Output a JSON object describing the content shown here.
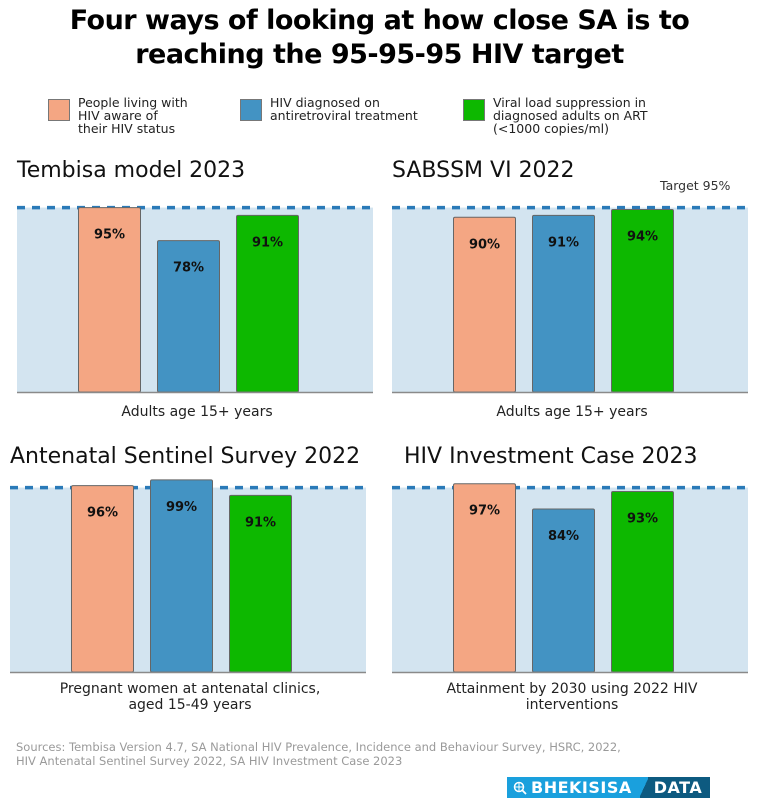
{
  "title_line1": "Four ways of looking at how close SA is to",
  "title_line2": "reaching the 95-95-95 HIV target",
  "legend": [
    {
      "label": "People living with HIV aware of their HIV status",
      "lines": [
        "People living with",
        "HIV aware of",
        "their HIV status"
      ],
      "color": "#f4a683"
    },
    {
      "label": "HIV diagnosed on antiretroviral treatment",
      "lines": [
        "HIV diagnosed on",
        "antiretroviral treatment"
      ],
      "color": "#4393c3"
    },
    {
      "label": "Viral load suppression in diagnosed adults on ART (<1000 copies/ml)",
      "lines": [
        "Viral load suppression in",
        "diagnosed adults on ART",
        "(<1000 copies/ml)"
      ],
      "color": "#0db800"
    }
  ],
  "target_label": "Target 95%",
  "sources": [
    "Sources: Tembisa Version 4.7, SA National HIV Prevalence, Incidence and Behaviour Survey, HSRC, 2022,",
    "HIV Antenatal Sentinel Survey 2022, SA HIV Investment Case 2023"
  ],
  "logo": {
    "left": "BHEKISISA",
    "right": "DATA"
  },
  "colors": {
    "plot_bg": "#d3e4f0",
    "target_line": "#2a7ab8",
    "bar_border": "#666666"
  },
  "chart_data": [
    {
      "type": "bar",
      "title": "Tembisa model 2023",
      "caption": [
        "Adults age 15+ years"
      ],
      "categories": [
        "Aware of HIV status",
        "On antiretroviral treatment",
        "Viral load suppression"
      ],
      "values": [
        95,
        78,
        91
      ],
      "labels": [
        "95%",
        "78%",
        "91%"
      ],
      "target": 95,
      "ylim": [
        0,
        100
      ],
      "ylabel": "",
      "xlabel": ""
    },
    {
      "type": "bar",
      "title": "SABSSM VI 2022",
      "caption": [
        "Adults age 15+ years"
      ],
      "categories": [
        "Aware of HIV status",
        "On antiretroviral treatment",
        "Viral load suppression"
      ],
      "values": [
        90,
        91,
        94
      ],
      "labels": [
        "90%",
        "91%",
        "94%"
      ],
      "target": 95,
      "target_label": "Target 95%",
      "ylim": [
        0,
        100
      ],
      "ylabel": "",
      "xlabel": ""
    },
    {
      "type": "bar",
      "title": "Antenatal Sentinel Survey 2022",
      "caption": [
        "Pregnant women at antenatal clinics,",
        "aged 15-49 years"
      ],
      "categories": [
        "Aware of HIV status",
        "On antiretroviral treatment",
        "Viral load suppression"
      ],
      "values": [
        96,
        99,
        91
      ],
      "labels": [
        "96%",
        "99%",
        "91%"
      ],
      "target": 95,
      "ylim": [
        0,
        100
      ],
      "ylabel": "",
      "xlabel": ""
    },
    {
      "type": "bar",
      "title": "HIV Investment Case 2023",
      "caption": [
        "Attainment by 2030 using 2022 HIV",
        "interventions"
      ],
      "categories": [
        "Aware of HIV status",
        "On antiretroviral treatment",
        "Viral load suppression"
      ],
      "values": [
        97,
        84,
        93
      ],
      "labels": [
        "97%",
        "84%",
        "93%"
      ],
      "target": 95,
      "ylim": [
        0,
        100
      ],
      "ylabel": "",
      "xlabel": ""
    }
  ]
}
